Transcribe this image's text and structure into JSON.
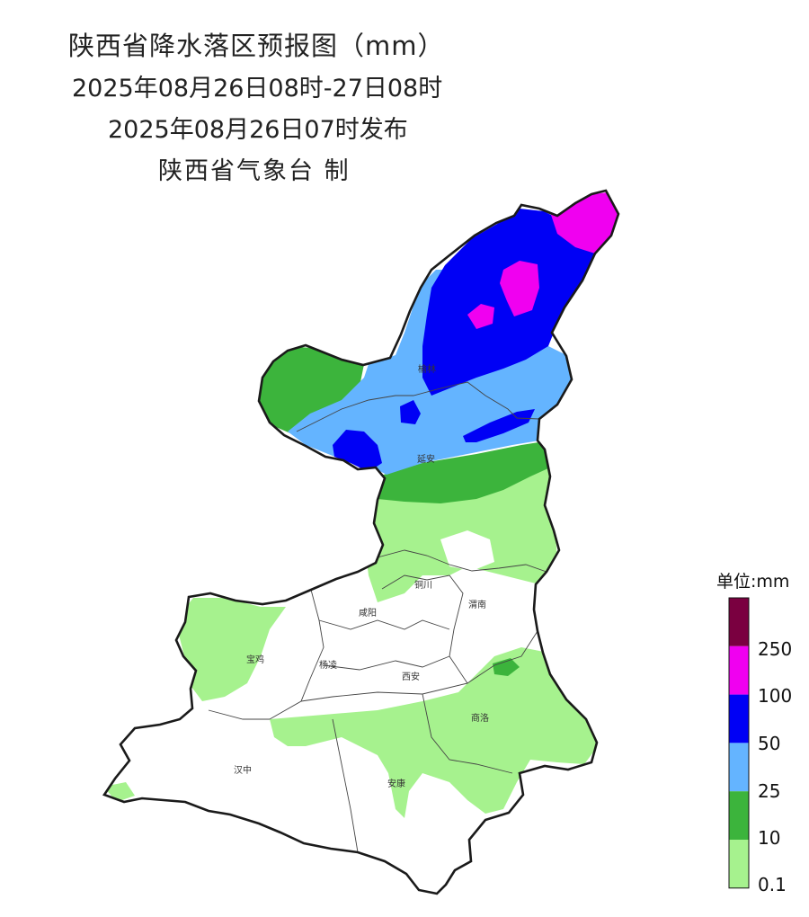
{
  "title": {
    "main": "陕西省降水落区预报图（mm）",
    "period": "2025年08月26日08时-27日08时",
    "issued": "2025年08月26日07时发布",
    "agency": "陕西省气象台 制"
  },
  "legend": {
    "title": "单位:mm",
    "bins": [
      {
        "color": "#7a0040"
      },
      {
        "color": "#f000f0",
        "label": "250"
      },
      {
        "color": "#0000f5",
        "label": "100"
      },
      {
        "color": "#64b4ff",
        "label": "50"
      },
      {
        "color": "#3cb43c",
        "label": "25"
      },
      {
        "color": "#a6f28e",
        "label": "10"
      },
      {
        "color": "",
        "label": "0.1"
      }
    ]
  },
  "cities": [
    {
      "id": "yulin",
      "name": "榆林"
    },
    {
      "id": "yanan",
      "name": "延安"
    },
    {
      "id": "tongchuan",
      "name": "铜川"
    },
    {
      "id": "weinan",
      "name": "渭南"
    },
    {
      "id": "xianyang",
      "name": "咸阳"
    },
    {
      "id": "baoji",
      "name": "宝鸡"
    },
    {
      "id": "yangling",
      "name": "杨凌"
    },
    {
      "id": "xian",
      "name": "西安"
    },
    {
      "id": "shangluo",
      "name": "商洛"
    },
    {
      "id": "hanzhong",
      "name": "汉中"
    },
    {
      "id": "ankang",
      "name": "安康"
    }
  ]
}
